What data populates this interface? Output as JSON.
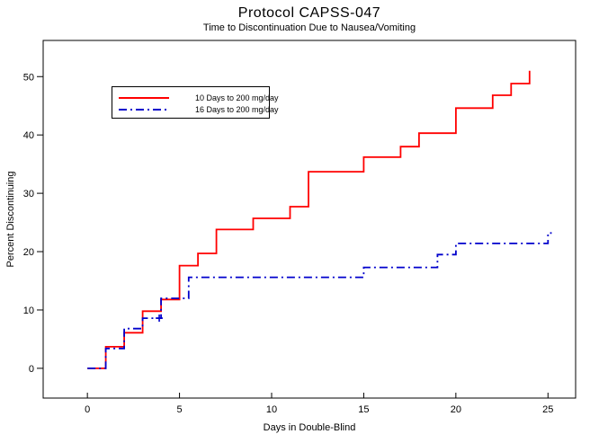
{
  "title": "Protocol CAPSS-047",
  "subtitle": "Time to Discontinuation Due to Nausea/Vomiting",
  "chart_data": {
    "type": "line",
    "subtype": "step-km-cumulative-incidence",
    "title": "Protocol CAPSS-047",
    "subtitle": "Time to Discontinuation Due to Nausea/Vomiting",
    "xlabel": "Days in Double-Blind",
    "ylabel": "Percent Discontinuing",
    "xlim": [
      -2.4,
      26.5
    ],
    "ylim": [
      -5.1,
      56.2
    ],
    "xticks": [
      0,
      5,
      10,
      15,
      20,
      25
    ],
    "yticks": [
      0,
      10,
      20,
      30,
      40,
      50
    ],
    "grid": false,
    "legend_position": "top-left-inside",
    "axis_color": "#000000",
    "series": [
      {
        "name": "10 Days to 200 mg/day",
        "color": "#FF0000",
        "style": "solid",
        "start": [
          0,
          0
        ],
        "end_day": 24,
        "steps": [
          [
            1,
            3.7
          ],
          [
            2,
            6.1
          ],
          [
            3,
            9.8
          ],
          [
            4,
            11.8
          ],
          [
            5,
            17.6
          ],
          [
            6,
            19.7
          ],
          [
            7,
            23.8
          ],
          [
            9,
            25.7
          ],
          [
            11,
            27.7
          ],
          [
            12,
            33.7
          ],
          [
            15,
            36.2
          ],
          [
            17,
            38.0
          ],
          [
            18,
            40.3
          ],
          [
            20,
            44.6
          ],
          [
            22,
            46.8
          ],
          [
            23,
            48.8
          ],
          [
            24,
            51.0
          ]
        ],
        "censor_marks": []
      },
      {
        "name": "16 Days to 200 mg/day",
        "color": "#0000CC",
        "style": "dash-dot",
        "start": [
          0,
          0
        ],
        "end_day": 25.2,
        "steps": [
          [
            1,
            3.4
          ],
          [
            2,
            6.8
          ],
          [
            3,
            8.6
          ],
          [
            4,
            12.0
          ],
          [
            5.5,
            15.6
          ],
          [
            15,
            17.3
          ],
          [
            19,
            19.5
          ],
          [
            20,
            21.4
          ],
          [
            25,
            23.2
          ]
        ],
        "censor_marks": [
          [
            3.9,
            8.6
          ]
        ]
      }
    ]
  }
}
